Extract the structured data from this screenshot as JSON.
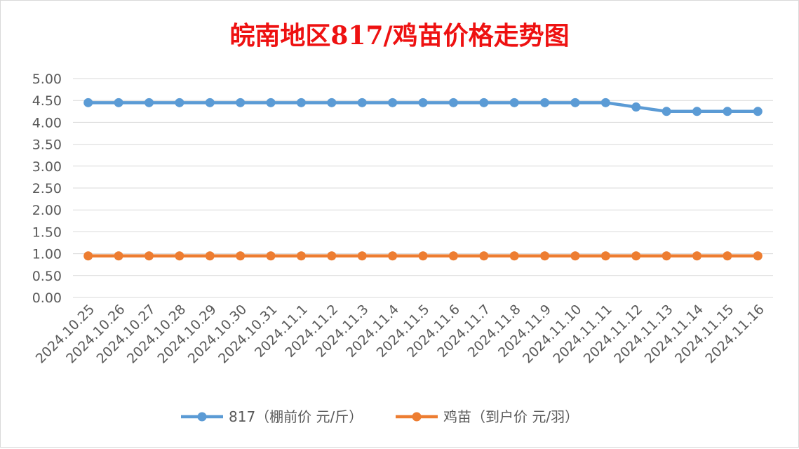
{
  "chart_data": {
    "type": "line",
    "title": "皖南地区817/鸡苗价格走势图",
    "xlabel": "",
    "ylabel": "",
    "ylim": [
      0,
      5
    ],
    "yticks": [
      "0.00",
      "0.50",
      "1.00",
      "1.50",
      "2.00",
      "2.50",
      "3.00",
      "3.50",
      "4.00",
      "4.50",
      "5.00"
    ],
    "grid": true,
    "legend_position": "bottom",
    "categories": [
      "2024.10.25",
      "2024.10.26",
      "2024.10.27",
      "2024.10.28",
      "2024.10.29",
      "2024.10.30",
      "2024.10.31",
      "2024.11.1",
      "2024.11.2",
      "2024.11.3",
      "2024.11.4",
      "2024.11.5",
      "2024.11.6",
      "2024.11.7",
      "2024.11.8",
      "2024.11.9",
      "2024.11.10",
      "2024.11.11",
      "2024.11.12",
      "2024.11.13",
      "2024.11.14",
      "2024.11.15",
      "2024.11.16"
    ],
    "series": [
      {
        "name": "817（棚前价 元/斤）",
        "color": "#5b9bd5",
        "values": [
          4.45,
          4.45,
          4.45,
          4.45,
          4.45,
          4.45,
          4.45,
          4.45,
          4.45,
          4.45,
          4.45,
          4.45,
          4.45,
          4.45,
          4.45,
          4.45,
          4.45,
          4.45,
          4.35,
          4.25,
          4.25,
          4.25,
          4.25
        ]
      },
      {
        "name": "鸡苗（到户价 元/羽）",
        "color": "#ed7d31",
        "values": [
          0.95,
          0.95,
          0.95,
          0.95,
          0.95,
          0.95,
          0.95,
          0.95,
          0.95,
          0.95,
          0.95,
          0.95,
          0.95,
          0.95,
          0.95,
          0.95,
          0.95,
          0.95,
          0.95,
          0.95,
          0.95,
          0.95,
          0.95
        ]
      }
    ]
  },
  "colors": {
    "title": "#ee1111",
    "grid": "#d9d9d9",
    "axis_text": "#595959"
  }
}
